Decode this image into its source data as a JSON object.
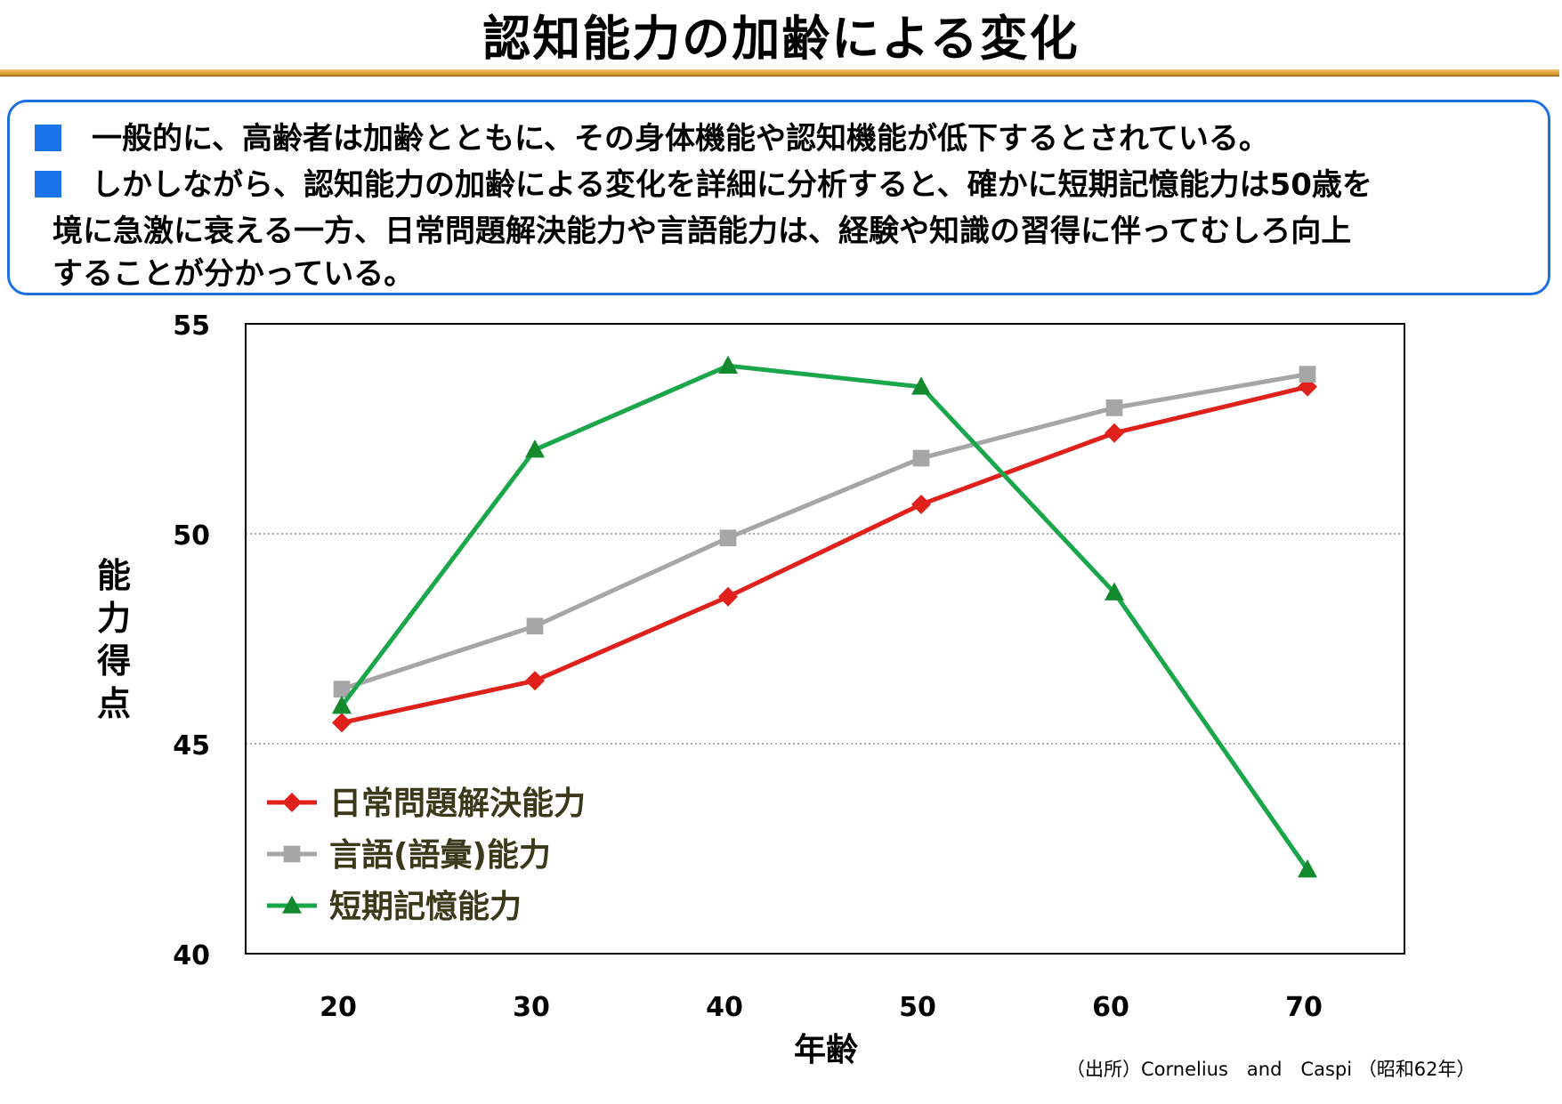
{
  "page": {
    "title": "認知能力の加齢による変化",
    "bullets": [
      [
        "一般的に、高齢者は加齢とともに、その身体機能や認知機能が低下するとされている。"
      ],
      [
        "しかしながら、認知能力の加齢による変化を詳細に分析すると、確かに短期記憶能力は50歳を",
        "境に急激に衰える一方、日常問題解決能力や言語能力は、経験や知識の習得に伴ってむしろ向上",
        "することが分かっている。"
      ]
    ],
    "source": "（出所）Cornelius　and　Caspi （昭和62年）"
  },
  "colors": {
    "accent_blue": "#1a73e8",
    "box_border": "#1e6fe0",
    "title_rule": "#d9a035"
  },
  "chart_data": {
    "type": "line",
    "title": "",
    "xlabel": "年齢",
    "ylabel": "能力得点",
    "x": [
      20,
      30,
      40,
      50,
      60,
      70
    ],
    "ylim": [
      40,
      55
    ],
    "yticks": [
      40,
      45,
      50,
      55
    ],
    "grid": "horizontal dotted",
    "legend_placement": "bottom-left",
    "series": [
      {
        "name": "日常問題解決能力",
        "marker": "diamond",
        "color": "#e0201b",
        "values": [
          45.5,
          46.5,
          48.5,
          50.7,
          52.4,
          53.5
        ]
      },
      {
        "name": "言語(語彙)能力",
        "marker": "square",
        "color": "#a6a6a6",
        "values": [
          46.3,
          47.8,
          49.9,
          51.8,
          53.0,
          53.8
        ]
      },
      {
        "name": "短期記憶能力",
        "marker": "triangle",
        "color": "#1aa64a",
        "values": [
          45.9,
          52.0,
          54.0,
          53.5,
          48.6,
          42.0
        ]
      }
    ]
  }
}
